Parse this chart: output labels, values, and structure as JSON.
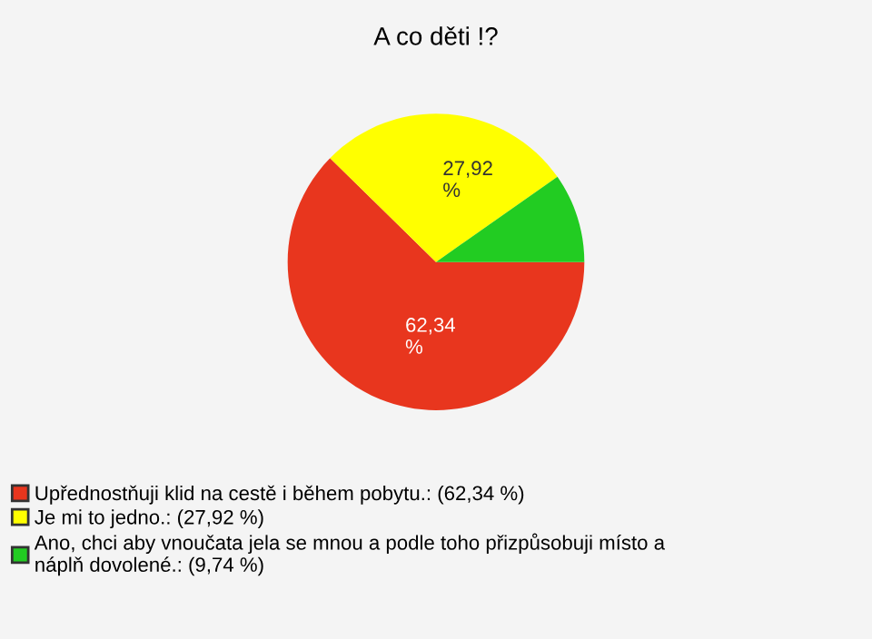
{
  "chart_data": {
    "type": "pie",
    "title": "A co děti !?",
    "categories": [
      "Upřednostňuji klid na cestě i během pobytu.: (62,34 %)",
      "Je mi to jedno.: (27,92 %)",
      "Ano, chci aby vnoučata jela se mnou a podle toho přizpůsobuji místo a\nnáplň dovolené.: (9,74 %)"
    ],
    "values": [
      62.34,
      27.92,
      9.74
    ],
    "value_labels": [
      "62,34\n%",
      "27,92\n%",
      null
    ],
    "colors": [
      "#e8361e",
      "#ffff00",
      "#22cc22"
    ],
    "legend": "bottom left"
  }
}
